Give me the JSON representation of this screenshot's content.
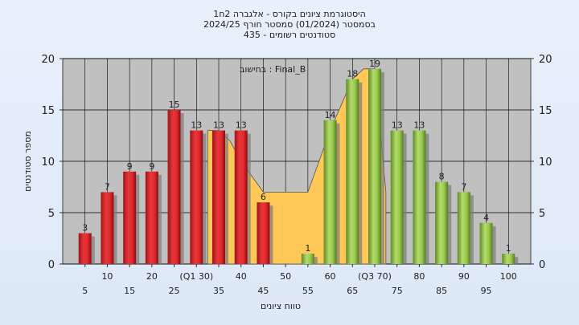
{
  "title_lines": [
    "היסטוגרמת ציונים בקורס - אלגברה 2ח1",
    "בסמסטר  (01/2024)  סמסטר חורף 2024/25",
    "סטודנטים רשומים - 435"
  ],
  "colors": {
    "plot_bg": "#c0c0c0",
    "frame_bg": "#e3ecf8",
    "fail_bar": "#e0282c",
    "pass_bar": "#8fc04a",
    "area": "#ffc857",
    "grid": "#000000"
  },
  "chart_data": {
    "type": "bar",
    "title": "",
    "xlabel": "טווח ציונים",
    "ylabel": "מספר סטודנטים",
    "ylim": [
      0,
      20
    ],
    "yticks": [
      0,
      5,
      10,
      15,
      20
    ],
    "grid": true,
    "legend_position": "top-center",
    "annotation": "בחישוב : Final_B",
    "categories": [
      "5",
      "10",
      "15",
      "20",
      "25",
      "(Q1 30)",
      "35",
      "40",
      "45",
      "50",
      "55",
      "60",
      "65",
      "(Q3 70)",
      "75",
      "80",
      "85",
      "90",
      "95",
      "100"
    ],
    "category_x": [
      5,
      10,
      15,
      20,
      25,
      30,
      35,
      40,
      45,
      50,
      55,
      60,
      65,
      70,
      75,
      80,
      85,
      90,
      95,
      100
    ],
    "values": [
      3,
      7,
      9,
      9,
      15,
      13,
      13,
      13,
      6,
      0,
      1,
      14,
      18,
      19,
      13,
      13,
      8,
      7,
      4,
      1
    ],
    "bar_groups": [
      "fail",
      "fail",
      "fail",
      "fail",
      "fail",
      "fail",
      "fail",
      "fail",
      "fail",
      "none",
      "pass",
      "pass",
      "pass",
      "pass",
      "pass",
      "pass",
      "pass",
      "pass",
      "pass",
      "pass"
    ],
    "area_series": {
      "x": [
        32.5,
        35,
        37.5,
        40,
        45,
        47.5,
        52.5,
        55,
        60,
        65,
        67.5,
        70,
        72.5
      ],
      "y": [
        13,
        13,
        12,
        10,
        7,
        7,
        7,
        7,
        13,
        18,
        19,
        19,
        7
      ]
    }
  }
}
